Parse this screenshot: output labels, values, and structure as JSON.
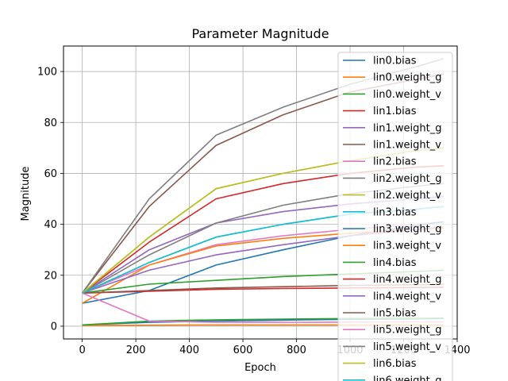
{
  "chart_data": {
    "type": "line",
    "title": "Parameter Magnitude",
    "xlabel": "Epoch",
    "ylabel": "Magnitude",
    "xlim": [
      -70,
      1400
    ],
    "ylim": [
      -5,
      110
    ],
    "xticks": [
      0,
      200,
      400,
      600,
      800,
      1000,
      1200,
      1400
    ],
    "yticks": [
      0,
      20,
      40,
      60,
      80,
      100
    ],
    "grid": true,
    "legend_position": "upper right",
    "x": [
      0,
      250,
      500,
      750,
      1000,
      1250,
      1350
    ],
    "series": [
      {
        "name": "lin0.bias",
        "color": "#1f77b4",
        "values": [
          0.5,
          1.5,
          2.0,
          2.4,
          2.7,
          2.9,
          3.0
        ]
      },
      {
        "name": "lin0.weight_g",
        "color": "#ff7f0e",
        "values": [
          0.3,
          0.4,
          0.5,
          0.5,
          0.5,
          0.5,
          0.5
        ]
      },
      {
        "name": "lin0.weight_v",
        "color": "#2ca02c",
        "values": [
          0.5,
          2.0,
          2.5,
          2.8,
          3.0,
          3.1,
          3.2
        ]
      },
      {
        "name": "lin1.bias",
        "color": "#d62728",
        "values": [
          13,
          33,
          50,
          56,
          60,
          62.5,
          63
        ]
      },
      {
        "name": "lin1.weight_g",
        "color": "#9467bd",
        "values": [
          13,
          30,
          40.5,
          45,
          48,
          50,
          51
        ]
      },
      {
        "name": "lin1.weight_v",
        "color": "#8c564b",
        "values": [
          13,
          47,
          71,
          83,
          92,
          97,
          99
        ]
      },
      {
        "name": "lin2.bias",
        "color": "#e377c2",
        "values": [
          13,
          24,
          32,
          35.5,
          38,
          40,
          41
        ]
      },
      {
        "name": "lin2.weight_g",
        "color": "#7f7f7f",
        "values": [
          13,
          28,
          40.5,
          47.5,
          52,
          55,
          56
        ]
      },
      {
        "name": "lin2.weight_v",
        "color": "#bcbd22",
        "values": [
          13,
          35,
          54,
          60,
          65,
          69,
          70
        ]
      },
      {
        "name": "lin3.bias",
        "color": "#17becf",
        "values": [
          13,
          25,
          35,
          40,
          44,
          46,
          47
        ]
      },
      {
        "name": "lin3.weight_g",
        "color": "#1f77b4",
        "values": [
          9,
          14,
          24,
          30,
          35.5,
          39.5,
          41
        ]
      },
      {
        "name": "lin3.weight_v",
        "color": "#ff7f0e",
        "values": [
          9,
          24,
          31.5,
          34.5,
          36.5,
          38,
          38.5
        ]
      },
      {
        "name": "lin4.bias",
        "color": "#2ca02c",
        "values": [
          13,
          16.5,
          18,
          19.5,
          20.5,
          21.5,
          22
        ]
      },
      {
        "name": "lin4.weight_g",
        "color": "#d62728",
        "values": [
          13,
          13.7,
          14.5,
          14.8,
          15,
          15.2,
          15.3
        ]
      },
      {
        "name": "lin4.weight_v",
        "color": "#9467bd",
        "values": [
          13,
          22,
          28,
          32,
          35.5,
          38,
          39
        ]
      },
      {
        "name": "lin5.bias",
        "color": "#8c564b",
        "values": [
          13,
          14,
          15,
          15.5,
          16,
          16.3,
          16.4
        ]
      },
      {
        "name": "lin5.weight_g",
        "color": "#e377c2",
        "values": [
          13,
          2.0,
          1.5,
          1.5,
          1.6,
          1.7,
          1.7
        ]
      },
      {
        "name": "lin5.weight_v",
        "color": "#7f7f7f",
        "values": [
          13,
          50,
          75,
          86,
          95,
          102,
          105
        ]
      },
      {
        "name": "lin6.bias",
        "color": "#bcbd22",
        "values": [
          13,
          35,
          54,
          60,
          65,
          69,
          70
        ]
      },
      {
        "name": "lin6.weight_g",
        "color": "#17becf",
        "values": [
          13,
          25,
          35,
          40,
          44,
          46,
          47
        ]
      }
    ]
  }
}
